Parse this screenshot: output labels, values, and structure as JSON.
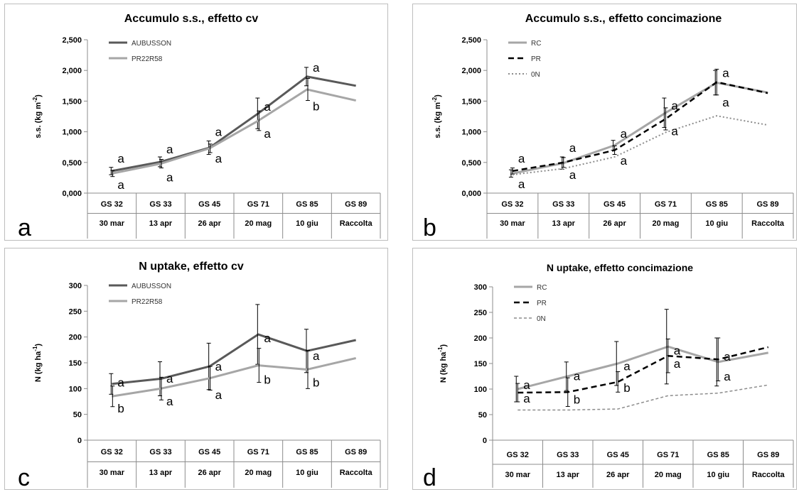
{
  "chart_data": [
    {
      "type": "line",
      "panel_label": "a",
      "title": "Accumulo s.s., effetto cv",
      "ylabel": "s.s. (kg m-2)",
      "ylabel_main": "s.s. (kg m",
      "ylabel_sup": "-2",
      "ylabel_end": ")",
      "ylim": [
        0,
        2.5
      ],
      "yticks": [
        0,
        0.5,
        1,
        1.5,
        2,
        2.5
      ],
      "ytick_labels": [
        "0,000",
        "0,500",
        "1,000",
        "1,500",
        "2,000",
        "2,500"
      ],
      "categories": [
        "GS 32",
        "GS 33",
        "GS 45",
        "GS 71",
        "GS 85",
        "GS 89"
      ],
      "categories2": [
        "30 mar",
        "13 apr",
        "26 apr",
        "20 mag",
        "10 giu",
        "Raccolta"
      ],
      "legend_position": "top-left",
      "series": [
        {
          "name": "AUBUSSON",
          "color": "#595959",
          "dash": "solid",
          "values": [
            0.36,
            0.51,
            0.74,
            1.3,
            1.9,
            1.75
          ],
          "err": [
            0.06,
            0.08,
            0.11,
            0.25,
            0.15,
            null
          ]
        },
        {
          "name": "PR22R58",
          "color": "#a6a6a6",
          "dash": "solid",
          "values": [
            0.32,
            0.48,
            0.73,
            1.18,
            1.69,
            1.51
          ],
          "err": [
            0.05,
            0.07,
            0.07,
            0.16,
            0.18,
            null
          ]
        }
      ],
      "annotations": [
        {
          "text": "a",
          "x": 0,
          "y": 0.57
        },
        {
          "text": "a",
          "x": 0,
          "y": 0.14
        },
        {
          "text": "a",
          "x": 1,
          "y": 0.72
        },
        {
          "text": "a",
          "x": 1,
          "y": 0.26
        },
        {
          "text": "a",
          "x": 2,
          "y": 1.0
        },
        {
          "text": "a",
          "x": 2,
          "y": 0.57
        },
        {
          "text": "a",
          "x": 3,
          "y": 1.41
        },
        {
          "text": "a",
          "x": 3,
          "y": 0.97
        },
        {
          "text": "a",
          "x": 4,
          "y": 2.05
        },
        {
          "text": "b",
          "x": 4,
          "y": 1.42
        }
      ]
    },
    {
      "type": "line",
      "panel_label": "b",
      "title": "Accumulo s.s., effetto concimazione",
      "ylabel": "s.s. (kg m-2)",
      "ylabel_main": "s.s. (kg m",
      "ylabel_sup": "-2",
      "ylabel_end": ")",
      "ylim": [
        0,
        2.5
      ],
      "yticks": [
        0,
        0.5,
        1,
        1.5,
        2,
        2.5
      ],
      "ytick_labels": [
        "0,000",
        "0,500",
        "1,000",
        "1,500",
        "2,000",
        "2,500"
      ],
      "categories": [
        "GS 32",
        "GS 33",
        "GS 45",
        "GS 71",
        "GS 85",
        "GS 89"
      ],
      "categories2": [
        "30 mar",
        "13 apr",
        "26 apr",
        "20 mag",
        "10 giu",
        "Raccolta"
      ],
      "legend_position": "top-left",
      "series": [
        {
          "name": "RC",
          "color": "#a6a6a6",
          "dash": "solid",
          "values": [
            0.32,
            0.49,
            0.78,
            1.31,
            1.8,
            1.64
          ],
          "err": [
            0.06,
            0.1,
            0.08,
            0.24,
            0.2,
            null
          ]
        },
        {
          "name": "PR",
          "color": "#000000",
          "dash": "dashed",
          "values": [
            0.36,
            0.5,
            0.7,
            1.21,
            1.81,
            1.63
          ],
          "err": [
            0.05,
            0.08,
            0.07,
            0.18,
            0.21,
            null
          ]
        },
        {
          "name": "0N",
          "color": "#8c8c8c",
          "dash": "dotted",
          "values": [
            0.3,
            0.4,
            0.59,
            0.99,
            1.26,
            1.11
          ],
          "err": [
            null,
            null,
            null,
            null,
            null,
            null
          ]
        }
      ],
      "annotations": [
        {
          "text": "a",
          "x": 0,
          "y": 0.57
        },
        {
          "text": "a",
          "x": 0,
          "y": 0.15
        },
        {
          "text": "a",
          "x": 1,
          "y": 0.74
        },
        {
          "text": "a",
          "x": 1,
          "y": 0.3
        },
        {
          "text": "a",
          "x": 2,
          "y": 0.97
        },
        {
          "text": "a",
          "x": 2,
          "y": 0.53
        },
        {
          "text": "a",
          "x": 3,
          "y": 1.43
        },
        {
          "text": "a",
          "x": 3,
          "y": 1.01
        },
        {
          "text": "a",
          "x": 4,
          "y": 1.96
        },
        {
          "text": "a",
          "x": 4,
          "y": 1.48
        }
      ]
    },
    {
      "type": "line",
      "panel_label": "c",
      "title": "N uptake, effetto cv",
      "ylabel": "N (kg ha-1)",
      "ylabel_main": "N (kg ha",
      "ylabel_sup": "-1",
      "ylabel_end": ")",
      "ylim": [
        0,
        300
      ],
      "yticks": [
        0,
        50,
        100,
        150,
        200,
        250,
        300
      ],
      "ytick_labels": [
        "0",
        "50",
        "100",
        "150",
        "200",
        "250",
        "300"
      ],
      "categories": [
        "GS 32",
        "GS 33",
        "GS 45",
        "GS 71",
        "GS 85",
        "GS 89"
      ],
      "categories2": [
        "30 mar",
        "13 apr",
        "26 apr",
        "20 mag",
        "10 giu",
        "Raccolta"
      ],
      "legend_position": "top-left",
      "series": [
        {
          "name": "AUBUSSON",
          "color": "#595959",
          "dash": "solid",
          "values": [
            109,
            119,
            143,
            205,
            173,
            194
          ],
          "err": [
            20,
            33,
            45,
            58,
            42,
            null
          ]
        },
        {
          "name": "PR22R58",
          "color": "#a6a6a6",
          "dash": "solid",
          "values": [
            85,
            100,
            120,
            145,
            137,
            159
          ],
          "err": [
            20,
            22,
            23,
            33,
            37,
            null
          ]
        }
      ],
      "annotations": [
        {
          "text": "a",
          "x": 0,
          "y": 112
        },
        {
          "text": "b",
          "x": 0,
          "y": 62
        },
        {
          "text": "a",
          "x": 1,
          "y": 120
        },
        {
          "text": "a",
          "x": 1,
          "y": 76
        },
        {
          "text": "a",
          "x": 2,
          "y": 143
        },
        {
          "text": "a",
          "x": 2,
          "y": 88
        },
        {
          "text": "a",
          "x": 3,
          "y": 198
        },
        {
          "text": "b",
          "x": 3,
          "y": 118
        },
        {
          "text": "a",
          "x": 4,
          "y": 164
        },
        {
          "text": "b",
          "x": 4,
          "y": 112
        }
      ]
    },
    {
      "type": "line",
      "panel_label": "d",
      "title": "N uptake, effetto concimazione",
      "ylabel": "N (kg ha-1)",
      "ylabel_main": "N (kg ha",
      "ylabel_sup": "-1",
      "ylabel_end": ")",
      "ylim": [
        0,
        300
      ],
      "yticks": [
        0,
        50,
        100,
        150,
        200,
        250,
        300
      ],
      "ytick_labels": [
        "0",
        "50",
        "100",
        "150",
        "200",
        "250",
        "300"
      ],
      "categories": [
        "GS 32",
        "GS 33",
        "GS 45",
        "GS 71",
        "GS 85",
        "GS 89"
      ],
      "categories2": [
        "30 mar",
        "13 apr",
        "26 apr",
        "20 mag",
        "10 giu",
        "Raccolta"
      ],
      "legend_position": "top-left",
      "series": [
        {
          "name": "RC",
          "color": "#a6a6a6",
          "dash": "solid",
          "values": [
            100,
            125,
            150,
            183,
            153,
            171
          ],
          "err": [
            25,
            28,
            43,
            73,
            47,
            null
          ]
        },
        {
          "name": "PR",
          "color": "#000000",
          "dash": "dashed",
          "values": [
            93,
            94,
            114,
            165,
            158,
            182
          ],
          "err": [
            18,
            28,
            20,
            33,
            42,
            null
          ]
        },
        {
          "name": "0N",
          "color": "#8c8c8c",
          "dash": "short-dash",
          "values": [
            59,
            59,
            61,
            87,
            92,
            108
          ],
          "err": [
            null,
            null,
            null,
            null,
            null,
            null
          ]
        }
      ],
      "annotations": [
        {
          "text": "a",
          "x": 0,
          "y": 108
        },
        {
          "text": "a",
          "x": 0,
          "y": 82
        },
        {
          "text": "a",
          "x": 1,
          "y": 126
        },
        {
          "text": "b",
          "x": 1,
          "y": 80
        },
        {
          "text": "a",
          "x": 2,
          "y": 145
        },
        {
          "text": "b",
          "x": 2,
          "y": 103
        },
        {
          "text": "a",
          "x": 3,
          "y": 176
        },
        {
          "text": "a",
          "x": 3,
          "y": 150
        },
        {
          "text": "a",
          "x": 4,
          "y": 164
        },
        {
          "text": "a",
          "x": 4,
          "y": 125
        }
      ]
    }
  ]
}
